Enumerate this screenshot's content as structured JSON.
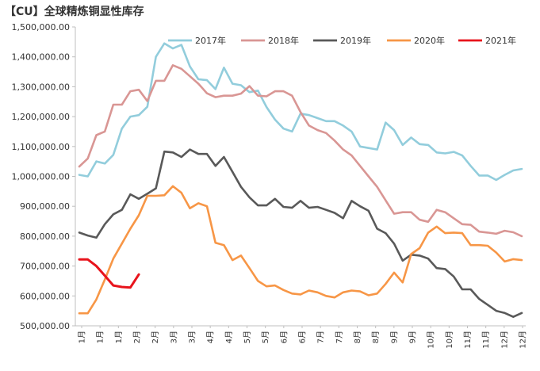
{
  "chart_data": {
    "type": "line",
    "title": "【CU】全球精炼铜显性库存",
    "xlabel": "",
    "ylabel": "",
    "ylim": [
      500000,
      1500000
    ],
    "yticks": [
      500000,
      600000,
      700000,
      800000,
      900000,
      1000000,
      1100000,
      1200000,
      1300000,
      1400000,
      1500000
    ],
    "ytick_labels": [
      "500,000.00",
      "600,000.00",
      "700,000.00",
      "800,000.00",
      "900,000.00",
      "1,000,000.00",
      "1,100,000.00",
      "1,200,000.00",
      "1,300,000.00",
      "1,400,000.00",
      "1,500,000.00"
    ],
    "xtick_labels": [
      "1月",
      "1月",
      "1月",
      "2月",
      "2月",
      "3月",
      "3月",
      "4月",
      "4月",
      "5月",
      "5月",
      "6月",
      "6月",
      "7月",
      "7月",
      "8月",
      "8月",
      "9月",
      "9月",
      "10月",
      "10月",
      "11月",
      "11月",
      "12月",
      "12月"
    ],
    "grid": false,
    "legend": "top-right",
    "series": [
      {
        "name": "2017年",
        "color": "#92CDDC",
        "values": [
          1005000,
          1000000,
          1050000,
          1043000,
          1072000,
          1160000,
          1200000,
          1205000,
          1233000,
          1400000,
          1445000,
          1428000,
          1440000,
          1368000,
          1325000,
          1322000,
          1292000,
          1364000,
          1310000,
          1305000,
          1282000,
          1287000,
          1232000,
          1190000,
          1160000,
          1150000,
          1210000,
          1205000,
          1195000,
          1185000,
          1185000,
          1170000,
          1150000,
          1100000,
          1095000,
          1090000,
          1180000,
          1155000,
          1105000,
          1130000,
          1108000,
          1105000,
          1080000,
          1077000,
          1082000,
          1070000,
          1035000,
          1003000,
          1003000,
          988000,
          1005000,
          1020000,
          1025000
        ]
      },
      {
        "name": "2018年",
        "color": "#D99694",
        "values": [
          1033000,
          1060000,
          1138000,
          1150000,
          1240000,
          1240000,
          1285000,
          1290000,
          1252000,
          1320000,
          1320000,
          1372000,
          1360000,
          1335000,
          1310000,
          1278000,
          1265000,
          1270000,
          1270000,
          1277000,
          1302000,
          1270000,
          1268000,
          1285000,
          1285000,
          1270000,
          1215000,
          1170000,
          1155000,
          1145000,
          1120000,
          1090000,
          1070000,
          1035000,
          1000000,
          965000,
          920000,
          875000,
          880000,
          880000,
          855000,
          848000,
          888000,
          880000,
          860000,
          840000,
          838000,
          815000,
          812000,
          808000,
          818000,
          813000,
          800000
        ]
      },
      {
        "name": "2019年",
        "color": "#595959",
        "values": [
          812000,
          802000,
          795000,
          840000,
          873000,
          888000,
          940000,
          925000,
          942000,
          960000,
          1083000,
          1080000,
          1065000,
          1090000,
          1075000,
          1075000,
          1035000,
          1065000,
          1015000,
          965000,
          930000,
          903000,
          903000,
          925000,
          898000,
          895000,
          918000,
          895000,
          898000,
          888000,
          878000,
          860000,
          918000,
          900000,
          885000,
          825000,
          810000,
          775000,
          718000,
          738000,
          735000,
          725000,
          693000,
          690000,
          665000,
          622000,
          622000,
          590000,
          570000,
          550000,
          543000,
          530000,
          543000
        ]
      },
      {
        "name": "2020年",
        "color": "#F79646",
        "values": [
          542000,
          542000,
          588000,
          655000,
          725000,
          775000,
          825000,
          870000,
          935000,
          935000,
          937000,
          967000,
          945000,
          893000,
          910000,
          900000,
          778000,
          770000,
          720000,
          735000,
          693000,
          650000,
          632000,
          635000,
          620000,
          608000,
          605000,
          618000,
          612000,
          600000,
          595000,
          612000,
          618000,
          615000,
          602000,
          608000,
          640000,
          678000,
          645000,
          740000,
          760000,
          812000,
          832000,
          810000,
          812000,
          810000,
          770000,
          770000,
          768000,
          745000,
          715000,
          723000,
          720000
        ]
      },
      {
        "name": "2021年",
        "color": "#E8141C",
        "values": [
          722000,
          722000,
          700000,
          668000,
          635000,
          630000,
          628000,
          672000
        ]
      }
    ]
  }
}
